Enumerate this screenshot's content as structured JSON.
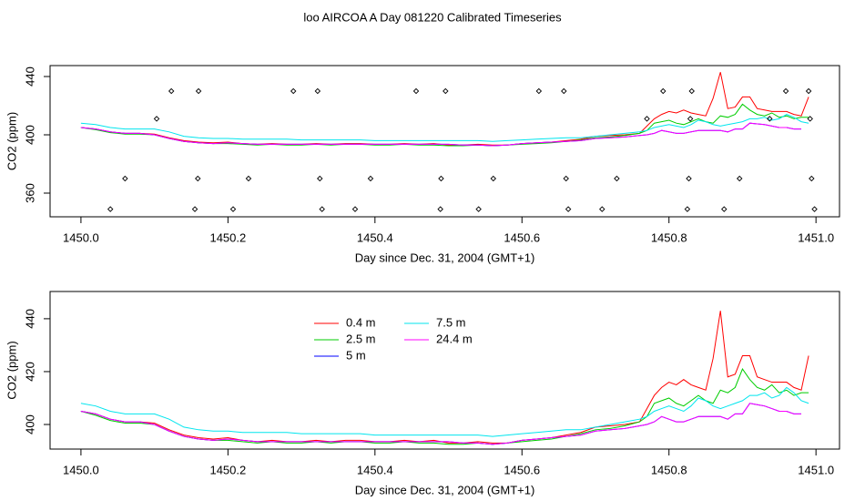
{
  "title": "loo AIRCOA A  Day 081220  Calibrated Timeseries",
  "chart_data": [
    {
      "type": "line",
      "xlabel": "Day since Dec. 31, 2004 (GMT+1)",
      "ylabel": "CO2 (ppm)",
      "xlim": [
        1449.958,
        1451.032
      ],
      "ylim": [
        343.75,
        447.5
      ],
      "xticks": [
        {
          "value": 1450,
          "label": "1450.0"
        },
        {
          "value": 1450.2,
          "label": "1450.2"
        },
        {
          "value": 1450.4,
          "label": "1450.4"
        },
        {
          "value": 1450.6,
          "label": "1450.6"
        },
        {
          "value": 1450.8,
          "label": "1450.8"
        },
        {
          "value": 1451,
          "label": "1451.0"
        }
      ],
      "yticks": [
        360,
        400,
        440
      ],
      "x": [
        1450,
        1450.02,
        1450.04,
        1450.06,
        1450.08,
        1450.1,
        1450.12,
        1450.14,
        1450.16,
        1450.18,
        1450.2,
        1450.22,
        1450.24,
        1450.26,
        1450.28,
        1450.3,
        1450.32,
        1450.34,
        1450.36,
        1450.38,
        1450.4,
        1450.42,
        1450.44,
        1450.46,
        1450.48,
        1450.5,
        1450.52,
        1450.54,
        1450.56,
        1450.58,
        1450.6,
        1450.62,
        1450.64,
        1450.66,
        1450.68,
        1450.7,
        1450.72,
        1450.74,
        1450.76,
        1450.77,
        1450.78,
        1450.79,
        1450.8,
        1450.81,
        1450.82,
        1450.83,
        1450.84,
        1450.85,
        1450.86,
        1450.87,
        1450.88,
        1450.89,
        1450.9,
        1450.91,
        1450.92,
        1450.93,
        1450.94,
        1450.95,
        1450.96,
        1450.97,
        1450.98,
        1450.99
      ],
      "series": [
        {
          "name": "0.4 m",
          "color": "#ff0000",
          "values": [
            405,
            404,
            402,
            401,
            401,
            400.5,
            398,
            396,
            395,
            394.5,
            395,
            394,
            393.5,
            394,
            393.5,
            393.5,
            394,
            393.5,
            394,
            394,
            393.5,
            393.5,
            394,
            393.5,
            394,
            393,
            393,
            393.5,
            393,
            393,
            394,
            394.5,
            395,
            396,
            397,
            399,
            399.5,
            400,
            401,
            406,
            411,
            414,
            416,
            415,
            417,
            415,
            414,
            413,
            425,
            443,
            418,
            419,
            426,
            426,
            418,
            417,
            416,
            416,
            416,
            414,
            413,
            426
          ]
        },
        {
          "name": "2.5 m",
          "color": "#00cd00",
          "values": [
            405,
            403.5,
            401.5,
            400.5,
            400.5,
            400,
            397.5,
            395.5,
            394.5,
            394,
            394,
            393.5,
            393,
            393.5,
            393,
            393,
            393.5,
            393,
            393.5,
            393.5,
            393,
            393,
            393.5,
            393,
            393,
            392.5,
            392.5,
            393,
            392.5,
            393,
            393.5,
            394,
            394.5,
            395.5,
            396.5,
            398,
            398.5,
            399.5,
            401,
            403,
            408,
            409,
            410,
            408,
            407,
            409,
            411,
            409,
            408,
            413,
            412,
            414,
            421,
            417,
            414,
            413,
            415,
            412,
            413,
            411,
            412,
            412
          ]
        },
        {
          "name": "5 m",
          "color": "#0000ff",
          "values": [
            405,
            404,
            402,
            401,
            401,
            400,
            397.5,
            395.5,
            394.5,
            394,
            394.5,
            394,
            393.5,
            393.5,
            393.5,
            393.5,
            393.5,
            393.5,
            393.5,
            393.5,
            393.5,
            393.5,
            393.5,
            393.5,
            393.5,
            393.5,
            393,
            393,
            392.5,
            393,
            394,
            394.5,
            395,
            395.5,
            396,
            397.5,
            398,
            398.5,
            399.5,
            400,
            401,
            403,
            402,
            401,
            401,
            402,
            403,
            403,
            403,
            403,
            402,
            404,
            404,
            408,
            407.5,
            407,
            406,
            405,
            405,
            404,
            404,
            null
          ]
        },
        {
          "name": "7.5 m",
          "color": "#00e5ee",
          "values": [
            408,
            407,
            405,
            404,
            404,
            404,
            402,
            399,
            398,
            397.5,
            397.5,
            397,
            397,
            397,
            397,
            396.5,
            396.5,
            396.5,
            396.5,
            396.5,
            396,
            396,
            396,
            396,
            396,
            396,
            396,
            396,
            395.5,
            396,
            396.5,
            397,
            397.5,
            398,
            398,
            399,
            400,
            401,
            402,
            403,
            405,
            406,
            407,
            406,
            405,
            407,
            410,
            409,
            407,
            406,
            407,
            408,
            409,
            411,
            411,
            412,
            410,
            411,
            414,
            412,
            409,
            408
          ]
        },
        {
          "name": "24.4 m",
          "color": "#ff00ff",
          "values": [
            405,
            404,
            402,
            401,
            401,
            400,
            397.5,
            395.5,
            394.5,
            394,
            394.5,
            394,
            393.5,
            393.5,
            393.5,
            393.5,
            393.5,
            393.5,
            393.5,
            393.5,
            393.5,
            393.5,
            393.5,
            393.5,
            393.5,
            393.5,
            393,
            393,
            392.5,
            393,
            394,
            394.5,
            395,
            395.5,
            396,
            397.5,
            398,
            398.5,
            399.5,
            400,
            401,
            403,
            402,
            401,
            401,
            402,
            403,
            403,
            403,
            403,
            402,
            404,
            404,
            408,
            407.5,
            407,
            406,
            405,
            405,
            404,
            404,
            null
          ]
        }
      ],
      "markers": {
        "color": "#000000",
        "x": [
          1450.04,
          1450.06,
          1450.103,
          1450.123,
          1450.155,
          1450.159,
          1450.16,
          1450.207,
          1450.228,
          1450.289,
          1450.322,
          1450.325,
          1450.328,
          1450.373,
          1450.394,
          1450.456,
          1450.489,
          1450.49,
          1450.496,
          1450.541,
          1450.561,
          1450.623,
          1450.657,
          1450.66,
          1450.663,
          1450.709,
          1450.729,
          1450.77,
          1450.792,
          1450.825,
          1450.827,
          1450.829,
          1450.831,
          1450.875,
          1450.896,
          1450.937,
          1450.959,
          1450.99,
          1450.992,
          1450.994,
          1450.998
        ],
        "y": [
          349,
          370,
          411,
          430,
          349,
          370,
          430,
          349,
          370,
          430,
          430,
          370,
          349,
          349,
          370,
          430,
          349,
          370,
          430,
          349,
          370,
          430,
          430,
          370,
          349,
          349,
          370,
          411,
          430,
          349,
          370,
          411,
          430,
          349,
          370,
          411,
          430,
          430,
          411,
          370,
          349
        ]
      }
    },
    {
      "type": "line",
      "xlabel": "Day since Dec. 31, 2004 (GMT+1)",
      "ylabel": "CO2 (ppm)",
      "legend": "top",
      "xlim": [
        1449.958,
        1451.032
      ],
      "ylim": [
        390.7,
        450.3
      ],
      "xticks": [
        {
          "value": 1450,
          "label": "1450.0"
        },
        {
          "value": 1450.2,
          "label": "1450.2"
        },
        {
          "value": 1450.4,
          "label": "1450.4"
        },
        {
          "value": 1450.6,
          "label": "1450.6"
        },
        {
          "value": 1450.8,
          "label": "1450.8"
        },
        {
          "value": 1451,
          "label": "1451.0"
        }
      ],
      "yticks": [
        400,
        420,
        440
      ],
      "x": [
        1450,
        1450.02,
        1450.04,
        1450.06,
        1450.08,
        1450.1,
        1450.12,
        1450.14,
        1450.16,
        1450.18,
        1450.2,
        1450.22,
        1450.24,
        1450.26,
        1450.28,
        1450.3,
        1450.32,
        1450.34,
        1450.36,
        1450.38,
        1450.4,
        1450.42,
        1450.44,
        1450.46,
        1450.48,
        1450.5,
        1450.52,
        1450.54,
        1450.56,
        1450.58,
        1450.6,
        1450.62,
        1450.64,
        1450.66,
        1450.68,
        1450.7,
        1450.72,
        1450.74,
        1450.76,
        1450.77,
        1450.78,
        1450.79,
        1450.8,
        1450.81,
        1450.82,
        1450.83,
        1450.84,
        1450.85,
        1450.86,
        1450.87,
        1450.88,
        1450.89,
        1450.9,
        1450.91,
        1450.92,
        1450.93,
        1450.94,
        1450.95,
        1450.96,
        1450.97,
        1450.98,
        1450.99
      ],
      "series": [
        {
          "name": "0.4 m",
          "color": "#ff0000",
          "values": [
            405,
            404,
            402,
            401,
            401,
            400.5,
            398,
            396,
            395,
            394.5,
            395,
            394,
            393.5,
            394,
            393.5,
            393.5,
            394,
            393.5,
            394,
            394,
            393.5,
            393.5,
            394,
            393.5,
            394,
            393,
            393,
            393.5,
            393,
            393,
            394,
            394.5,
            395,
            396,
            397,
            399,
            399.5,
            400,
            401,
            406,
            411,
            414,
            416,
            415,
            417,
            415,
            414,
            413,
            425,
            443,
            418,
            419,
            426,
            426,
            418,
            417,
            416,
            416,
            416,
            414,
            413,
            426
          ]
        },
        {
          "name": "2.5 m",
          "color": "#00cd00",
          "values": [
            405,
            403.5,
            401.5,
            400.5,
            400.5,
            400,
            397.5,
            395.5,
            394.5,
            394,
            394,
            393.5,
            393,
            393.5,
            393,
            393,
            393.5,
            393,
            393.5,
            393.5,
            393,
            393,
            393.5,
            393,
            393,
            392.5,
            392.5,
            393,
            392.5,
            393,
            393.5,
            394,
            394.5,
            395.5,
            396.5,
            398,
            398.5,
            399.5,
            401,
            403,
            408,
            409,
            410,
            408,
            407,
            409,
            411,
            409,
            408,
            413,
            412,
            414,
            421,
            417,
            414,
            413,
            415,
            412,
            413,
            411,
            412,
            412
          ]
        },
        {
          "name": "5 m",
          "color": "#0000ff",
          "values": [
            405,
            404,
            402,
            401,
            401,
            400,
            397.5,
            395.5,
            394.5,
            394,
            394.5,
            394,
            393.5,
            393.5,
            393.5,
            393.5,
            393.5,
            393.5,
            393.5,
            393.5,
            393.5,
            393.5,
            393.5,
            393.5,
            393.5,
            393.5,
            393,
            393,
            392.5,
            393,
            394,
            394.5,
            395,
            395.5,
            396,
            397.5,
            398,
            398.5,
            399.5,
            400,
            401,
            403,
            402,
            401,
            401,
            402,
            403,
            403,
            403,
            403,
            402,
            404,
            404,
            408,
            407.5,
            407,
            406,
            405,
            405,
            404,
            404,
            null
          ]
        },
        {
          "name": "7.5 m",
          "color": "#00e5ee",
          "values": [
            408,
            407,
            405,
            404,
            404,
            404,
            402,
            399,
            398,
            397.5,
            397.5,
            397,
            397,
            397,
            397,
            396.5,
            396.5,
            396.5,
            396.5,
            396.5,
            396,
            396,
            396,
            396,
            396,
            396,
            396,
            396,
            395.5,
            396,
            396.5,
            397,
            397.5,
            398,
            398,
            399,
            400,
            401,
            402,
            403,
            405,
            406,
            407,
            406,
            405,
            407,
            410,
            409,
            407,
            406,
            407,
            408,
            409,
            411,
            411,
            412,
            410,
            411,
            414,
            412,
            409,
            408
          ]
        },
        {
          "name": "24.4 m",
          "color": "#ff00ff",
          "values": [
            405,
            404,
            402,
            401,
            401,
            400,
            397.5,
            395.5,
            394.5,
            394,
            394.5,
            394,
            393.5,
            393.5,
            393.5,
            393.5,
            393.5,
            393.5,
            393.5,
            393.5,
            393.5,
            393.5,
            393.5,
            393.5,
            393.5,
            393.5,
            393,
            393,
            392.5,
            393,
            394,
            394.5,
            395,
            395.5,
            396,
            397.5,
            398,
            398.5,
            399.5,
            400,
            401,
            403,
            402,
            401,
            401,
            402,
            403,
            403,
            403,
            403,
            402,
            404,
            404,
            408,
            407.5,
            407,
            406,
            405,
            405,
            404,
            404,
            null
          ]
        }
      ]
    }
  ]
}
